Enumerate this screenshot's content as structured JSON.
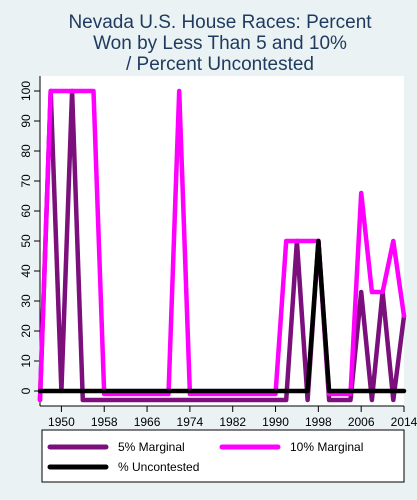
{
  "chart_data": {
    "type": "line",
    "title_lines": [
      "Nevada U.S. House Races: Percent",
      "Won by Less Than 5 and 10%",
      "/ Percent Uncontested"
    ],
    "xlabel": "",
    "ylabel": "",
    "xlim": [
      1946,
      2014
    ],
    "ylim": [
      -5,
      105
    ],
    "x_ticks": [
      1950,
      1958,
      1966,
      1974,
      1982,
      1990,
      1998,
      2006,
      2014
    ],
    "y_ticks": [
      0,
      10,
      20,
      30,
      40,
      50,
      60,
      70,
      80,
      90,
      100
    ],
    "grid": false,
    "legend_position": "bottom",
    "series": [
      {
        "name": "5% Marginal",
        "color": "#7b0f7b",
        "x": [
          1946,
          1948,
          1950,
          1952,
          1954,
          1956,
          1958,
          1960,
          1962,
          1964,
          1966,
          1968,
          1970,
          1972,
          1974,
          1976,
          1978,
          1980,
          1982,
          1984,
          1986,
          1988,
          1990,
          1992,
          1994,
          1996,
          1998,
          2000,
          2002,
          2004,
          2006,
          2008,
          2010,
          2012,
          2014
        ],
        "values": [
          -3,
          100,
          0,
          100,
          -3,
          -3,
          -3,
          -3,
          -3,
          -3,
          -3,
          -3,
          -3,
          -3,
          -3,
          -3,
          -3,
          -3,
          -3,
          -3,
          -3,
          -3,
          -3,
          -3,
          50,
          -3,
          50,
          -3,
          -3,
          -3,
          33,
          -3,
          33,
          -3,
          25
        ]
      },
      {
        "name": "10% Marginal",
        "color": "#ff00ff",
        "x": [
          1946,
          1948,
          1950,
          1952,
          1954,
          1956,
          1958,
          1960,
          1962,
          1964,
          1966,
          1968,
          1970,
          1972,
          1974,
          1976,
          1978,
          1980,
          1982,
          1984,
          1986,
          1988,
          1990,
          1992,
          1994,
          1996,
          1998,
          2000,
          2002,
          2004,
          2006,
          2008,
          2010,
          2012,
          2014
        ],
        "values": [
          -3,
          100,
          100,
          100,
          100,
          100,
          -1,
          -1,
          -1,
          -1,
          -1,
          -1,
          -1,
          100,
          -1,
          -1,
          -1,
          -1,
          -1,
          -1,
          -1,
          -1,
          -1,
          50,
          50,
          50,
          50,
          -1,
          -1,
          -1,
          66,
          33,
          33,
          50,
          25
        ]
      },
      {
        "name": "% Uncontested",
        "color": "#000000",
        "x": [
          1946,
          1948,
          1950,
          1952,
          1954,
          1956,
          1958,
          1960,
          1962,
          1964,
          1966,
          1968,
          1970,
          1972,
          1974,
          1976,
          1978,
          1980,
          1982,
          1984,
          1986,
          1988,
          1990,
          1992,
          1994,
          1996,
          1998,
          2000,
          2002,
          2004,
          2006,
          2008,
          2010,
          2012,
          2014
        ],
        "values": [
          0,
          0,
          0,
          0,
          0,
          0,
          0,
          0,
          0,
          0,
          0,
          0,
          0,
          0,
          0,
          0,
          0,
          0,
          0,
          0,
          0,
          0,
          0,
          0,
          0,
          0,
          50,
          0,
          0,
          0,
          0,
          0,
          0,
          0,
          0
        ]
      }
    ]
  }
}
